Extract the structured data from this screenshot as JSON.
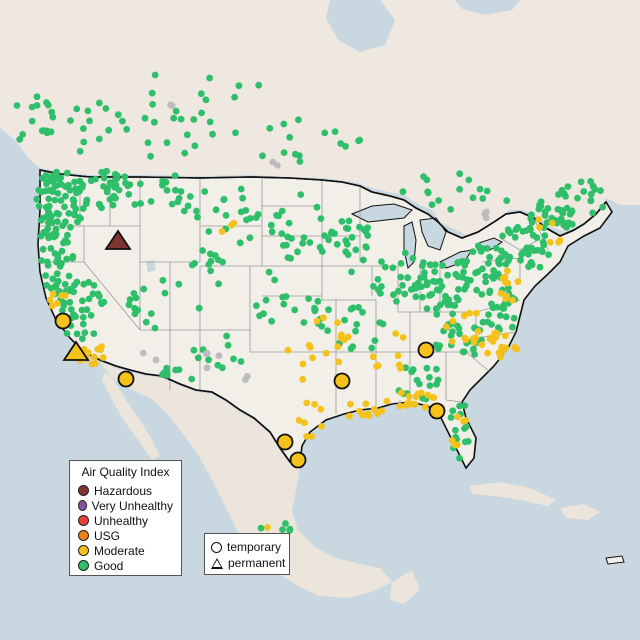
{
  "colors": {
    "water": "#c9d7e0",
    "land_us": "#f2efe9",
    "land_other": "#ebe5dc",
    "land_north": "#efe8e0",
    "state_line": "#9a9a9a",
    "border_line": "#111111",
    "hazardous": "#7e3430",
    "very_unhealthy": "#8f4fa3",
    "unhealthy": "#e8403a",
    "usg": "#f07f1d",
    "moderate": "#f4c21a",
    "good": "#2fbf6a",
    "no_data": "#bdbdbd"
  },
  "legend": {
    "title": "Air Quality Index",
    "items": [
      {
        "label": "Hazardous",
        "color": "#7e3430"
      },
      {
        "label": "Very Unhealthy",
        "color": "#8f4fa3"
      },
      {
        "label": "Unhealthy",
        "color": "#e8403a"
      },
      {
        "label": "USG",
        "color": "#f07f1d"
      },
      {
        "label": "Moderate",
        "color": "#f4c21a"
      },
      {
        "label": "Good",
        "color": "#2fbf6a"
      }
    ]
  },
  "type_legend": {
    "temporary_label": "temporary",
    "permanent_label": "permanent"
  },
  "stations": {
    "highlighted": [
      {
        "category": "hazardous",
        "type": "permanent"
      },
      {
        "category": "moderate",
        "type": "permanent"
      },
      {
        "category": "moderate",
        "type": "temporary"
      },
      {
        "category": "moderate",
        "type": "temporary"
      },
      {
        "category": "moderate",
        "type": "temporary"
      },
      {
        "category": "moderate",
        "type": "temporary"
      },
      {
        "category": "moderate",
        "type": "temporary"
      },
      {
        "category": "moderate",
        "type": "temporary"
      },
      {
        "category": "moderate",
        "type": "temporary"
      }
    ]
  }
}
